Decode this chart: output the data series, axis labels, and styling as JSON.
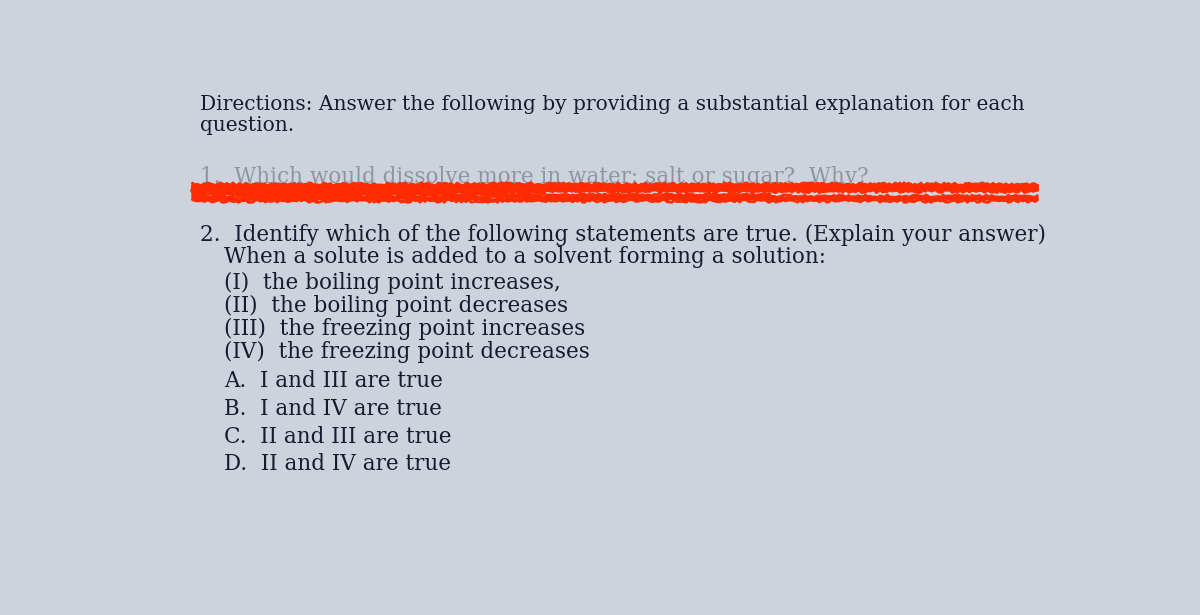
{
  "background_color": "#cdd3dc",
  "text_color": "#1a1a2e",
  "directions_line1": "Directions: Answer the following by providing a substantial explanation for each",
  "directions_line2": "question.",
  "red_line_color": "#ff2a00",
  "font_size_directions": 14.5,
  "font_size_q": 15.5,
  "font_size_options": 15.5,
  "q1_visible_text": "1.  Which would dissolve more in water: salt or sugar?  Why?",
  "q2_line1": "2.  Identify which of the following statements are true. (Explain your answer)",
  "q2_line2": "When a solute is added to a solvent forming a solution:",
  "option_I": "(I)  the boiling point increases,",
  "option_II": "(II)  the boiling point decreases",
  "option_III": "(III)  the freezing point increases",
  "option_IV": "(IV)  the freezing point decreases",
  "choice_A": "A.  I and III are true",
  "choice_B": "B.  I and IV are true",
  "choice_C": "C.  II and III are true",
  "choice_D": "D.  II and IV are true"
}
